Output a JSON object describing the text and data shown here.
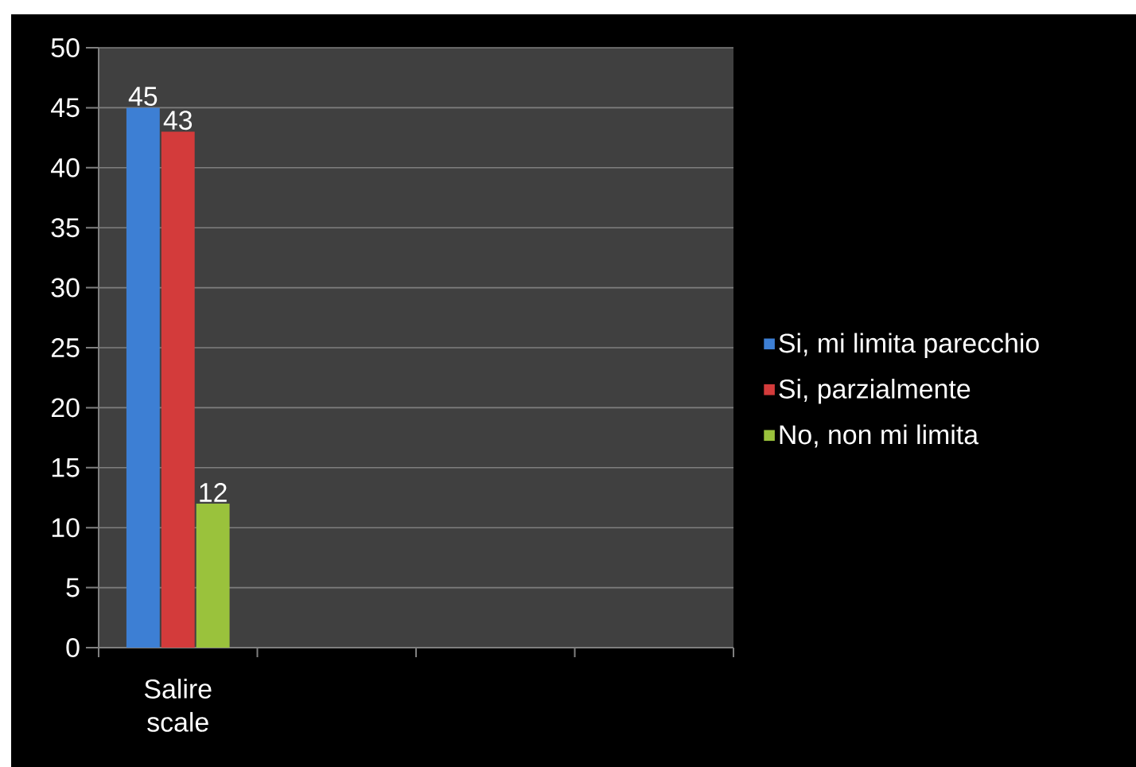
{
  "chart_data": {
    "type": "bar",
    "categories": [
      "Salire scale",
      null,
      null,
      null
    ],
    "series": [
      {
        "name": "Si, mi limita parecchio",
        "color": "#3d7fd4",
        "values": [
          45,
          null,
          null,
          null
        ]
      },
      {
        "name": "Si, parzialmente",
        "color": "#d33b3b",
        "values": [
          43,
          null,
          null,
          null
        ]
      },
      {
        "name": "No, non mi limita",
        "color": "#9ac23c",
        "values": [
          12,
          null,
          null,
          null
        ]
      }
    ],
    "ylim": [
      0,
      50
    ],
    "yticks": [
      0,
      5,
      10,
      15,
      20,
      25,
      30,
      35,
      40,
      45,
      50
    ],
    "grid": "y",
    "legend": "right",
    "data_labels": true
  }
}
